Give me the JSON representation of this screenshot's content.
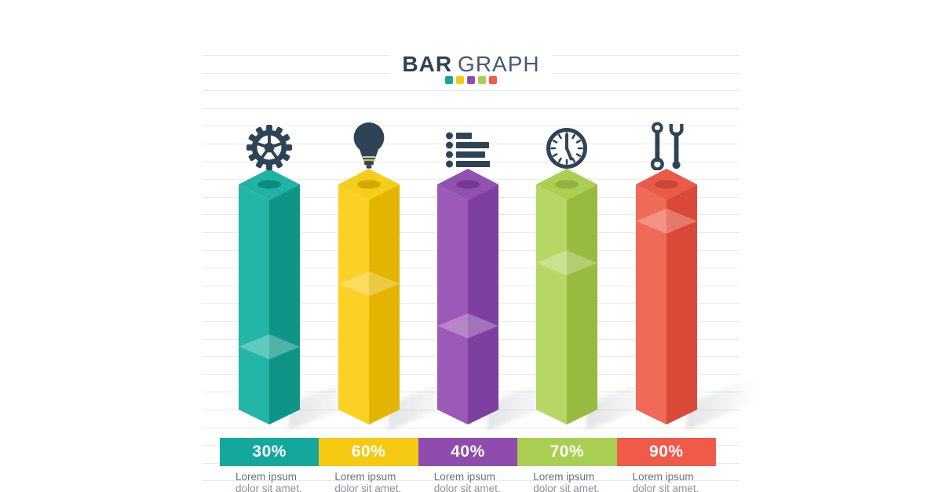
{
  "header": {
    "title_bold": "BAR",
    "title_light": "GRAPH",
    "palette_dots": [
      "#13a89b",
      "#f6c913",
      "#8f4bad",
      "#a9cf52",
      "#ef5a49"
    ]
  },
  "columns": [
    {
      "icon": "gear-icon",
      "pct": 30,
      "pct_label": "30%",
      "desc_line1": "Lorem ipsum",
      "desc_line2": "dolor sit amet,",
      "colors": {
        "light": "#23b5a5",
        "dark": "#0f9488",
        "top": "#1fb3a3",
        "ellipse": "#0c877b",
        "band": "#13a89b"
      }
    },
    {
      "icon": "lightbulb-icon",
      "pct": 60,
      "pct_label": "60%",
      "desc_line1": "Lorem ipsum",
      "desc_line2": "dolor sit amet,",
      "colors": {
        "light": "#fdd124",
        "dark": "#e3b500",
        "top": "#f6cd1b",
        "ellipse": "#cfa500",
        "band": "#f6c913"
      }
    },
    {
      "icon": "list-icon",
      "pct": 40,
      "pct_label": "40%",
      "desc_line1": "Lorem ipsum",
      "desc_line2": "dolor sit amet,",
      "colors": {
        "light": "#9c59b8",
        "dark": "#7f3fa0",
        "top": "#9151b1",
        "ellipse": "#71368e",
        "band": "#8f4bad"
      }
    },
    {
      "icon": "clock-icon",
      "pct": 70,
      "pct_label": "70%",
      "desc_line1": "Lorem ipsum",
      "desc_line2": "dolor sit amet,",
      "colors": {
        "light": "#b7d765",
        "dark": "#97bb3e",
        "top": "#aacf52",
        "ellipse": "#8fae3b",
        "band": "#a9cf52"
      }
    },
    {
      "icon": "wrench-icon",
      "pct": 90,
      "pct_label": "90%",
      "desc_line1": "Lorem ipsum",
      "desc_line2": "dolor sit amet,",
      "colors": {
        "light": "#f16a58",
        "dark": "#da4938",
        "top": "#e95a49",
        "ellipse": "#c64534",
        "band": "#ef5a49"
      }
    }
  ],
  "chart_data": {
    "type": "bar",
    "title": "BAR GRAPH",
    "categories": [
      "Lorem ipsum dolor sit amet,",
      "Lorem ipsum dolor sit amet,",
      "Lorem ipsum dolor sit amet,",
      "Lorem ipsum dolor sit amet,",
      "Lorem ipsum dolor sit amet,"
    ],
    "values": [
      30,
      60,
      40,
      70,
      90
    ],
    "value_labels": [
      "30%",
      "60%",
      "40%",
      "70%",
      "90%"
    ],
    "series_colors": [
      "#13a89b",
      "#f6c913",
      "#8f4bad",
      "#a9cf52",
      "#ef5a49"
    ],
    "bar_icons": [
      "gear",
      "lightbulb",
      "list",
      "clock",
      "wrenches"
    ],
    "ylim": [
      0,
      100
    ],
    "legend": "none",
    "grid": "horizontal-ruled-lines",
    "style": "3d-isometric-columns"
  }
}
